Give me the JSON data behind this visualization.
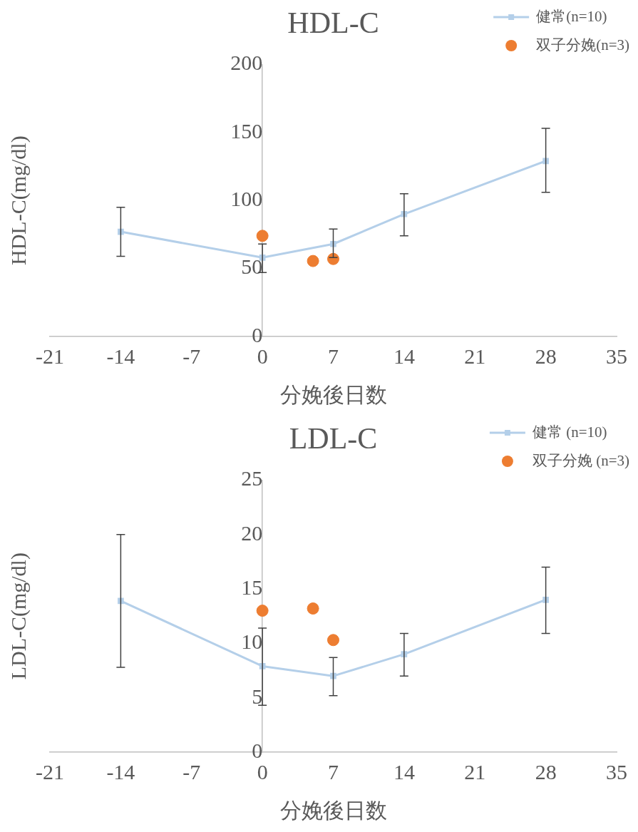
{
  "chart_data": [
    {
      "type": "line",
      "title": "HDL-C",
      "xlabel": "分娩後日数",
      "ylabel": "HDL-C(mg/dl)",
      "xlim": [
        -21,
        35
      ],
      "xticks": [
        -21,
        -14,
        -7,
        0,
        7,
        14,
        21,
        28,
        35
      ],
      "ylim": [
        0,
        200
      ],
      "yticks": [
        0,
        50,
        100,
        150,
        200
      ],
      "grid": false,
      "legend": "top right",
      "series": [
        {
          "name": "健常(n=10)",
          "color": "#b4cfe9",
          "marker": "square",
          "x": [
            -14,
            0,
            7,
            14,
            28
          ],
          "values": [
            77,
            58,
            68,
            90,
            129
          ],
          "errors": [
            [
              59,
              95
            ],
            [
              47,
              68
            ],
            [
              58,
              79
            ],
            [
              74,
              105
            ],
            [
              106,
              153
            ]
          ]
        },
        {
          "name": "双子分娩(n=3)",
          "type": "scatter",
          "color": "#ed7d31",
          "marker": "circle",
          "x": [
            0,
            5,
            7
          ],
          "values": [
            74,
            55.5,
            57
          ]
        }
      ]
    },
    {
      "type": "line",
      "title": "LDL-C",
      "xlabel": "分娩後日数",
      "ylabel": "LDL-C(mg/dl)",
      "xlim": [
        -21,
        35
      ],
      "xticks": [
        -21,
        -14,
        -7,
        0,
        7,
        14,
        21,
        28,
        35
      ],
      "ylim": [
        0,
        25
      ],
      "yticks": [
        0,
        5,
        10,
        15,
        20,
        25
      ],
      "grid": false,
      "legend": "top right",
      "series": [
        {
          "name": "健常 (n=10)",
          "color": "#b4cfe9",
          "marker": "square",
          "x": [
            -14,
            0,
            7,
            14,
            28
          ],
          "values": [
            13.9,
            7.9,
            7,
            9,
            14
          ],
          "errors": [
            [
              7.8,
              20
            ],
            [
              4.3,
              11.4
            ],
            [
              5.2,
              8.7
            ],
            [
              7,
              10.9
            ],
            [
              10.9,
              17
            ]
          ]
        },
        {
          "name": "双子分娩 (n=3)",
          "type": "scatter",
          "color": "#ed7d31",
          "marker": "circle",
          "x": [
            0,
            5,
            7
          ],
          "values": [
            13,
            13.2,
            10.3
          ]
        }
      ]
    }
  ]
}
